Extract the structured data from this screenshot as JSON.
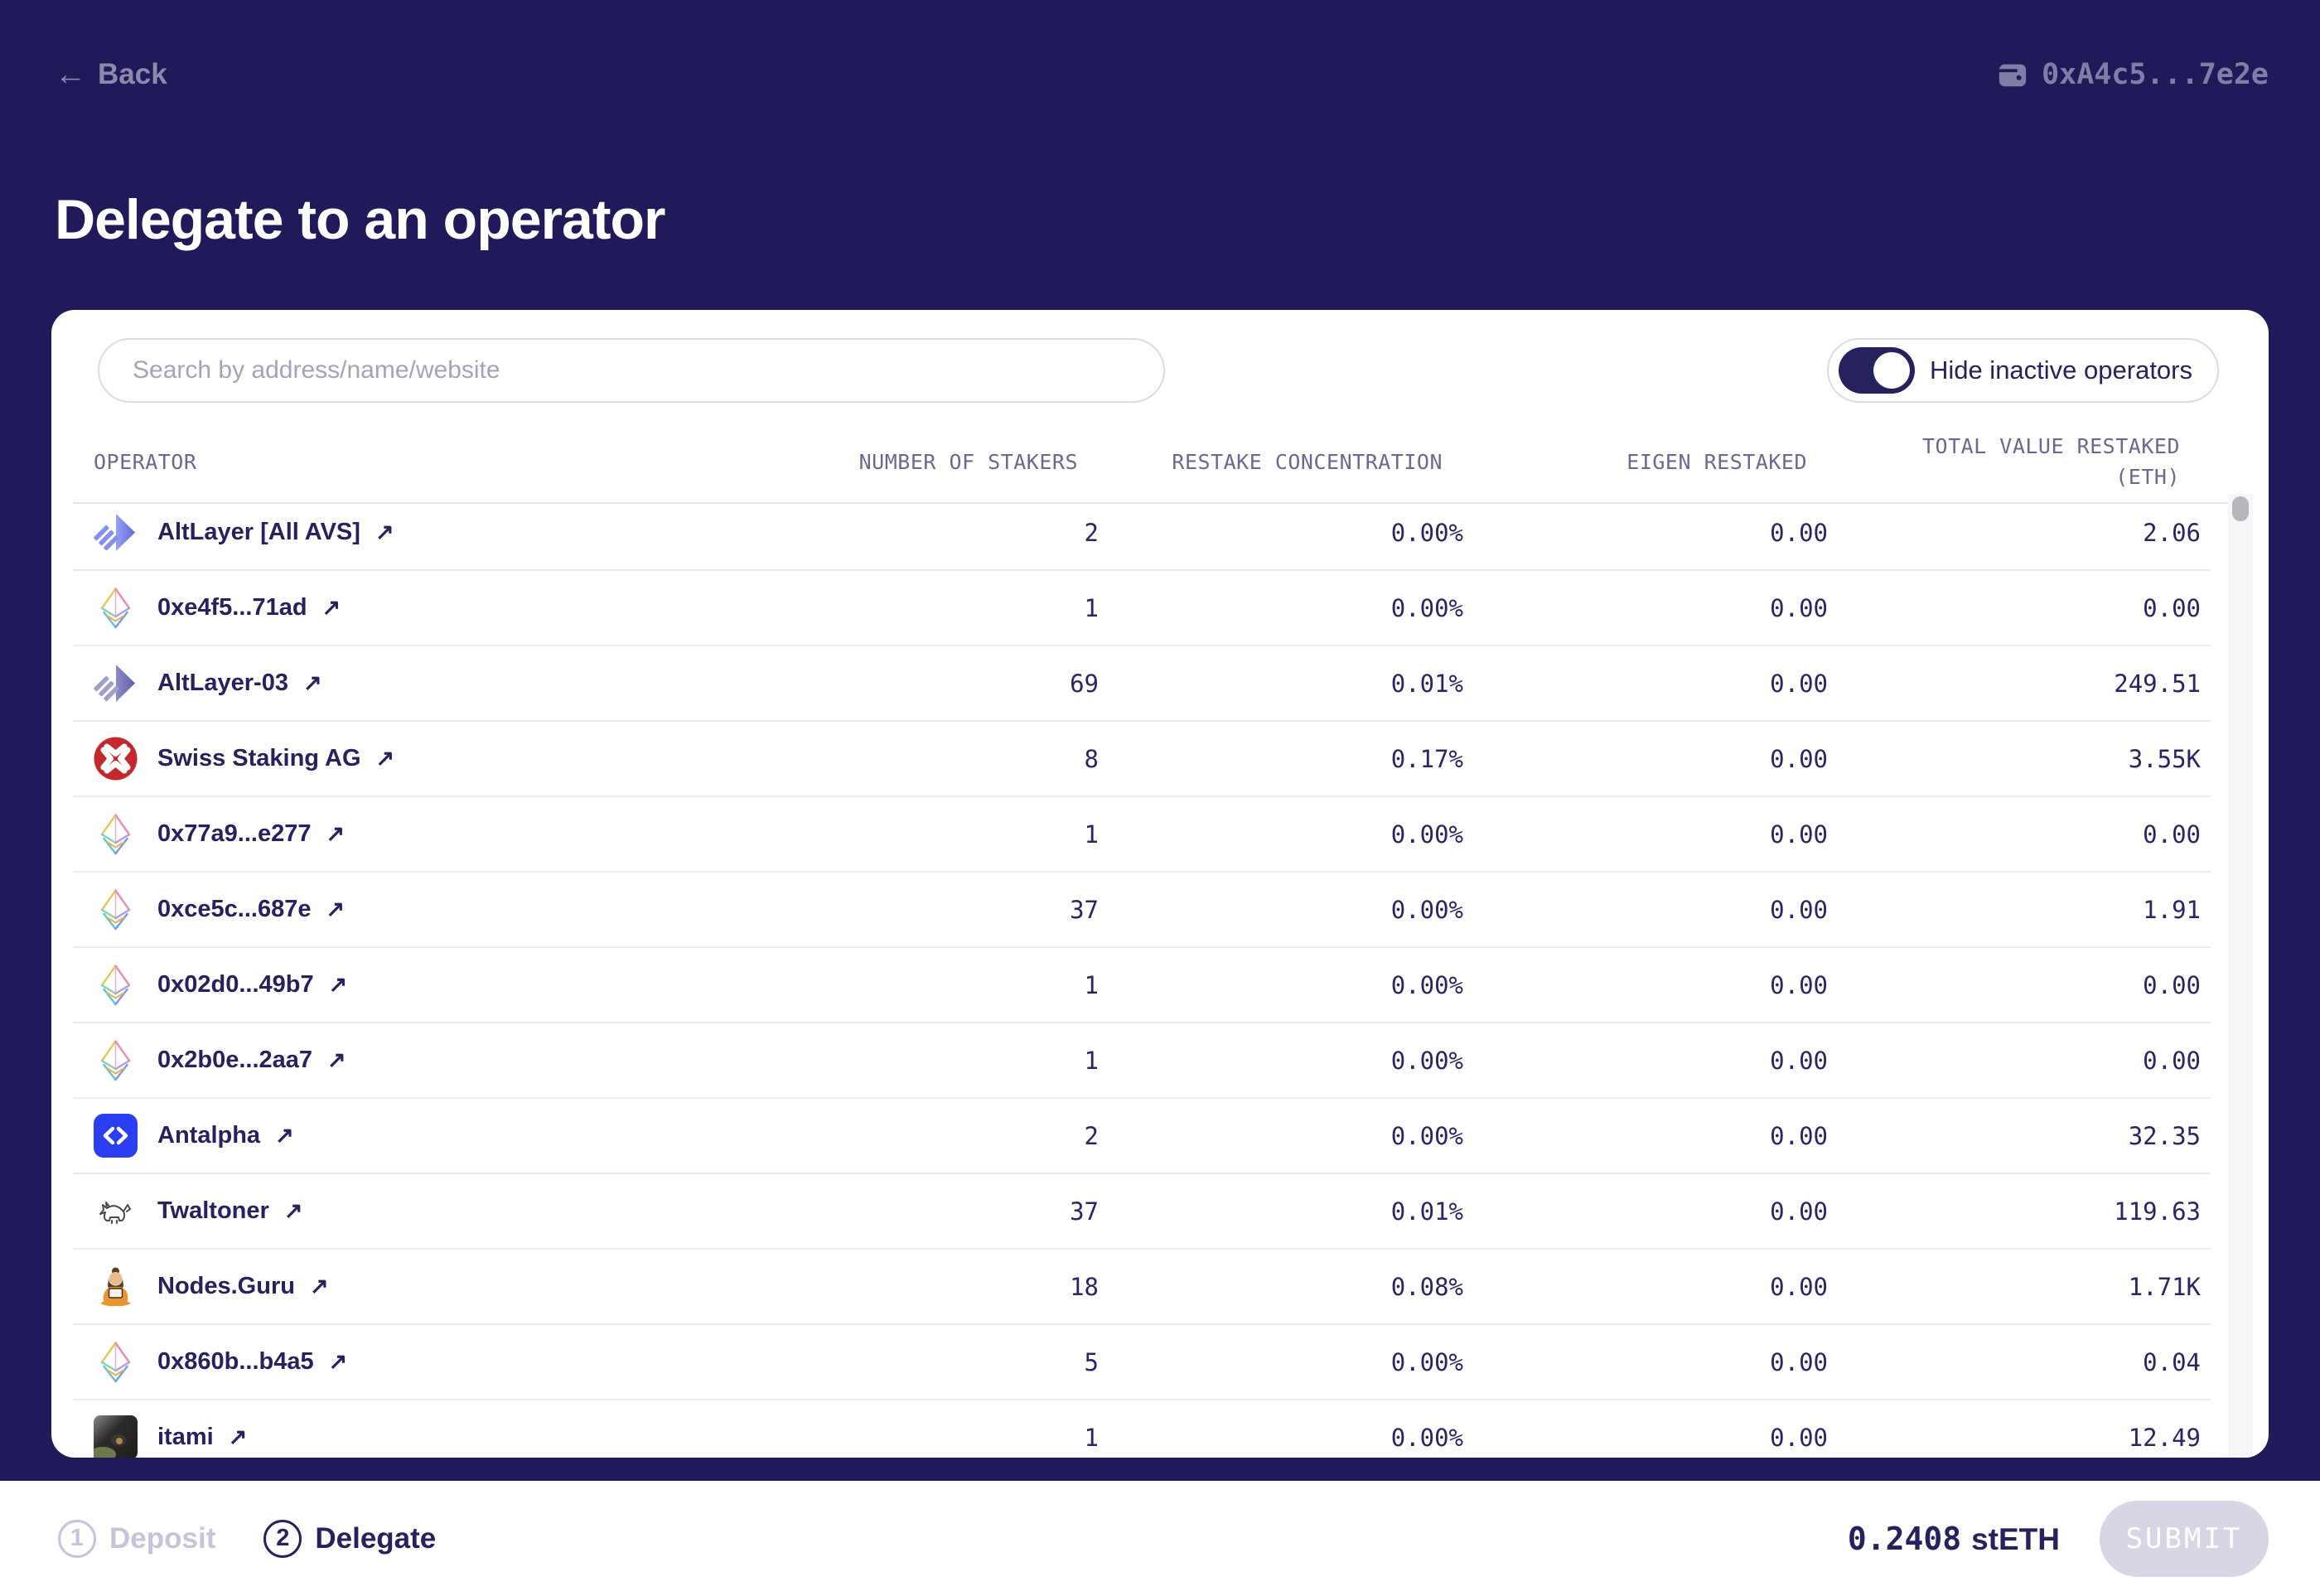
{
  "header": {
    "back_label": "Back",
    "back_arrow": "←",
    "wallet_address": "0xA4c5...7e2e"
  },
  "title": "Delegate to an operator",
  "search": {
    "placeholder": "Search by address/name/website"
  },
  "toggle": {
    "label": "Hide inactive operators",
    "state": "on"
  },
  "table": {
    "columns": {
      "operator": "OPERATOR",
      "stakers": "NUMBER OF STAKERS",
      "concentration": "RESTAKE CONCENTRATION",
      "eigen": "EIGEN RESTAKED",
      "total_line1": "TOTAL VALUE RESTAKED",
      "total_line2": "(ETH)"
    },
    "external_link_symbol": "↗",
    "rows": [
      {
        "name": "AltLayer [All AVS]",
        "icon": "altlayer",
        "stakers": "2",
        "concentration": "0.00%",
        "eigen": "0.00",
        "total": "2.06"
      },
      {
        "name": "0xe4f5...71ad",
        "icon": "eth",
        "stakers": "1",
        "concentration": "0.00%",
        "eigen": "0.00",
        "total": "0.00"
      },
      {
        "name": "AltLayer-03",
        "icon": "altlayer-gray",
        "stakers": "69",
        "concentration": "0.01%",
        "eigen": "0.00",
        "total": "249.51"
      },
      {
        "name": "Swiss Staking AG",
        "icon": "swiss-staking",
        "stakers": "8",
        "concentration": "0.17%",
        "eigen": "0.00",
        "total": "3.55K"
      },
      {
        "name": "0x77a9...e277",
        "icon": "eth",
        "stakers": "1",
        "concentration": "0.00%",
        "eigen": "0.00",
        "total": "0.00"
      },
      {
        "name": "0xce5c...687e",
        "icon": "eth",
        "stakers": "37",
        "concentration": "0.00%",
        "eigen": "0.00",
        "total": "1.91"
      },
      {
        "name": "0x02d0...49b7",
        "icon": "eth",
        "stakers": "1",
        "concentration": "0.00%",
        "eigen": "0.00",
        "total": "0.00"
      },
      {
        "name": "0x2b0e...2aa7",
        "icon": "eth",
        "stakers": "1",
        "concentration": "0.00%",
        "eigen": "0.00",
        "total": "0.00"
      },
      {
        "name": "Antalpha",
        "icon": "antalpha",
        "stakers": "2",
        "concentration": "0.00%",
        "eigen": "0.00",
        "total": "32.35"
      },
      {
        "name": "Twaltoner",
        "icon": "twaltoner",
        "stakers": "37",
        "concentration": "0.01%",
        "eigen": "0.00",
        "total": "119.63"
      },
      {
        "name": "Nodes.Guru",
        "icon": "nodes-guru",
        "stakers": "18",
        "concentration": "0.08%",
        "eigen": "0.00",
        "total": "1.71K"
      },
      {
        "name": "0x860b...b4a5",
        "icon": "eth",
        "stakers": "5",
        "concentration": "0.00%",
        "eigen": "0.00",
        "total": "0.04"
      },
      {
        "name": "itami",
        "icon": "itami",
        "stakers": "1",
        "concentration": "0.00%",
        "eigen": "0.00",
        "total": "12.49"
      }
    ]
  },
  "footer": {
    "steps": [
      {
        "number": "1",
        "label": "Deposit",
        "state": "inactive"
      },
      {
        "number": "2",
        "label": "Delegate",
        "state": "active"
      }
    ],
    "amount_value": "0.2408",
    "amount_unit": "stETH",
    "submit_label": "SUBMIT"
  },
  "colors": {
    "background": "#211a5a",
    "text_primary": "#262260",
    "muted_header": "#6b6892",
    "antalpha_blue": "#2a3ff2",
    "swiss_red": "#c5282c",
    "disabled_button": "#d8d5e5",
    "toggle_on": "#262260"
  }
}
